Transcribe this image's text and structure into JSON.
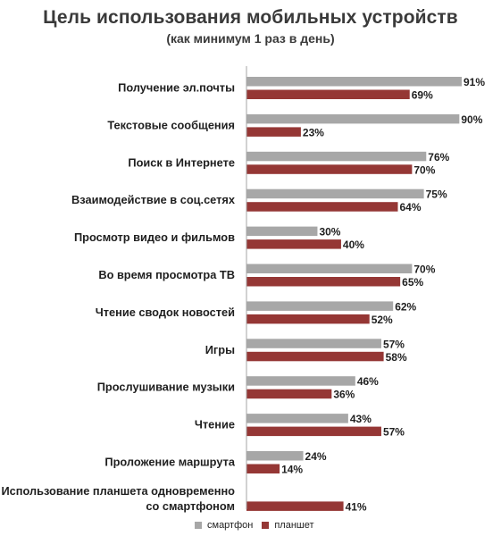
{
  "chart_data": {
    "type": "bar",
    "orientation": "horizontal",
    "title": "Цель использования мобильных устройств",
    "subtitle": "(как минимум 1 раз в день)",
    "categories": [
      "Получение эл.почты",
      "Текстовые сообщения",
      "Поиск в Интернете",
      "Взаимодействие в соц.сетях",
      "Просмотр видео и фильмов",
      "Во время просмотра ТВ",
      "Чтение сводок новостей",
      "Игры",
      "Прослушивание музыки",
      "Чтение",
      "Проложение маршрута",
      "Использование планшета одновременно со смартфоном"
    ],
    "series": [
      {
        "name": "смартфон",
        "color": "#a7a7a7",
        "values": [
          91,
          90,
          76,
          75,
          30,
          70,
          62,
          57,
          46,
          43,
          24,
          null
        ],
        "labels": [
          "91%",
          "90%",
          "76%",
          "75%",
          "30%",
          "70%",
          "62%",
          "57%",
          "46%",
          "43%",
          "24%",
          ""
        ]
      },
      {
        "name": "планшет",
        "color": "#953735",
        "values": [
          69,
          23,
          70,
          64,
          40,
          65,
          52,
          58,
          36,
          57,
          14,
          41
        ],
        "labels": [
          "69%",
          "23%",
          "70%",
          "64%",
          "40%",
          "65%",
          "52%",
          "58%",
          "36%",
          "57%",
          "14%",
          "41%"
        ]
      }
    ],
    "xlim": [
      0,
      100
    ],
    "grid": false,
    "legend": "bottom"
  }
}
